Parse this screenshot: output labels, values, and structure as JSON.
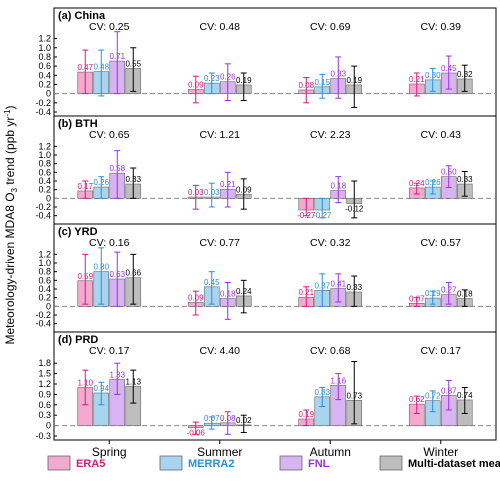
{
  "y_axis_label_prefix": "Meteorology-driven MDA8 O",
  "y_axis_label_sub": "3",
  "y_axis_label_suffix": " trend (ppb yr",
  "y_axis_label_sup": "-1",
  "y_axis_label_close": ")",
  "cv_prefix": "CV:",
  "colors": {
    "ERA5": "#f4a9cf",
    "MERRA2": "#a9d4f0",
    "FNL": "#d9b4f2",
    "Multi-dataset mean": "#bdbdbd",
    "ERA5_text": "#d6197f",
    "MERRA2_text": "#2a8fd8",
    "FNL_text": "#9b30e0",
    "Multi-dataset mean_text": "#000000"
  },
  "chart_data": [
    {
      "type": "bar",
      "title": "(a) China",
      "categories": [
        "Spring",
        "Summer",
        "Autumn",
        "Winter"
      ],
      "cv": [
        "0.25",
        "0.48",
        "0.69",
        "0.39"
      ],
      "ylim": [
        -0.4,
        1.3
      ],
      "yticks": [
        -0.4,
        -0.2,
        0,
        0.2,
        0.4,
        0.6,
        0.8,
        1.0,
        1.2
      ],
      "ytick_labels": [
        "-0.4",
        "-0.2",
        "0",
        "0.2",
        "0.4",
        "0.6",
        "0.8",
        "1.0",
        "1.2"
      ],
      "series": [
        {
          "name": "ERA5",
          "values": [
            0.47,
            0.09,
            0.08,
            0.21
          ],
          "labels": [
            "0.47",
            "0.09",
            "0.08",
            "0.21"
          ],
          "lo": [
            0.0,
            -0.2,
            -0.2,
            -0.05
          ],
          "hi": [
            0.95,
            0.38,
            0.35,
            0.45
          ]
        },
        {
          "name": "MERRA2",
          "values": [
            0.48,
            0.23,
            0.15,
            0.3
          ],
          "labels": [
            "0.48",
            "0.23",
            "0.15",
            "0.30"
          ],
          "lo": [
            -0.05,
            0.0,
            -0.1,
            0.05
          ],
          "hi": [
            0.95,
            0.45,
            0.42,
            0.55
          ]
        },
        {
          "name": "FNL",
          "values": [
            0.71,
            0.26,
            0.33,
            0.45
          ],
          "labels": [
            "0.71",
            "0.26",
            "0.33",
            "0.45"
          ],
          "lo": [
            0.0,
            -0.15,
            -0.1,
            0.1
          ],
          "hi": [
            1.35,
            0.65,
            0.8,
            0.82
          ]
        },
        {
          "name": "Multi-dataset mean",
          "values": [
            0.55,
            0.19,
            0.19,
            0.32
          ],
          "labels": [
            "0.55",
            "0.19",
            "0.19",
            "0.32"
          ],
          "lo": [
            0.05,
            -0.15,
            -0.3,
            0.05
          ],
          "hi": [
            1.0,
            0.45,
            0.6,
            0.62
          ]
        }
      ]
    },
    {
      "type": "bar",
      "title": "(b) BTH",
      "categories": [
        "Spring",
        "Summer",
        "Autumn",
        "Winter"
      ],
      "cv": [
        "0.65",
        "1.21",
        "2.23",
        "0.43"
      ],
      "ylim": [
        -0.5,
        1.3
      ],
      "yticks": [
        -0.4,
        -0.2,
        0,
        0.2,
        0.4,
        0.6,
        0.8,
        1.0,
        1.2
      ],
      "ytick_labels": [
        "-0.4",
        "-0.2",
        "0",
        "0.2",
        "0.4",
        "0.6",
        "0.8",
        "1.0",
        "1.2"
      ],
      "series": [
        {
          "name": "ERA5",
          "values": [
            0.17,
            0.03,
            -0.27,
            0.24
          ],
          "labels": [
            "0.17",
            "0.03",
            "-0.27",
            "0.24"
          ],
          "lo": [
            0.0,
            -0.25,
            -0.4,
            0.1
          ],
          "hi": [
            0.4,
            0.3,
            0.0,
            0.35
          ]
        },
        {
          "name": "MERRA2",
          "values": [
            0.26,
            0.03,
            -0.27,
            0.26
          ],
          "labels": [
            "0.26",
            "0.03",
            "-0.27",
            "0.26"
          ],
          "lo": [
            0.0,
            -0.2,
            -0.45,
            0.1
          ],
          "hi": [
            0.5,
            0.35,
            0.0,
            0.4
          ]
        },
        {
          "name": "FNL",
          "values": [
            0.58,
            0.21,
            0.18,
            0.5
          ],
          "labels": [
            "0.58",
            "0.21",
            "0.18",
            "0.50"
          ],
          "lo": [
            0.0,
            -0.2,
            -0.1,
            0.25
          ],
          "hi": [
            1.1,
            0.6,
            0.5,
            0.75
          ]
        },
        {
          "name": "Multi-dataset mean",
          "values": [
            0.33,
            0.09,
            -0.12,
            0.33
          ],
          "labels": [
            "0.33",
            "0.09",
            "-0.12",
            "0.33"
          ],
          "lo": [
            0.0,
            -0.25,
            -0.45,
            0.05
          ],
          "hi": [
            0.7,
            0.45,
            0.4,
            0.62
          ]
        }
      ]
    },
    {
      "type": "bar",
      "title": "(c) YRD",
      "categories": [
        "Spring",
        "Summer",
        "Autumn",
        "Winter"
      ],
      "cv": [
        "0.16",
        "0.77",
        "0.32",
        "0.57"
      ],
      "ylim": [
        -0.5,
        1.3
      ],
      "yticks": [
        -0.4,
        -0.2,
        0,
        0.2,
        0.4,
        0.6,
        0.8,
        1.0,
        1.2
      ],
      "ytick_labels": [
        "-0.4",
        "-0.2",
        "0",
        "0.2",
        "0.4",
        "0.6",
        "0.8",
        "1.0",
        "1.2"
      ],
      "series": [
        {
          "name": "ERA5",
          "values": [
            0.59,
            0.09,
            0.21,
            0.07
          ],
          "labels": [
            "0.59",
            "0.09",
            "0.21",
            "0.07"
          ],
          "lo": [
            0.05,
            -0.2,
            0.0,
            0.0
          ],
          "hi": [
            1.2,
            0.35,
            0.45,
            0.2
          ]
        },
        {
          "name": "MERRA2",
          "values": [
            0.8,
            0.45,
            0.37,
            0.19
          ],
          "labels": [
            "0.80",
            "0.45",
            "0.37",
            "0.19"
          ],
          "lo": [
            0.05,
            0.05,
            0.0,
            0.05
          ],
          "hi": [
            1.35,
            0.8,
            0.75,
            0.35
          ]
        },
        {
          "name": "FNL",
          "values": [
            0.63,
            0.18,
            0.41,
            0.27
          ],
          "labels": [
            "0.63",
            "0.18",
            "0.41",
            "0.27"
          ],
          "lo": [
            0.0,
            -0.3,
            0.1,
            0.05
          ],
          "hi": [
            1.25,
            0.55,
            0.75,
            0.55
          ]
        },
        {
          "name": "Multi-dataset mean",
          "values": [
            0.66,
            0.24,
            0.33,
            0.18
          ],
          "labels": [
            "0.66",
            "0.24",
            "0.33",
            "0.18"
          ],
          "lo": [
            0.05,
            -0.15,
            0.0,
            0.0
          ],
          "hi": [
            1.2,
            0.6,
            0.7,
            0.38
          ]
        }
      ]
    },
    {
      "type": "bar",
      "title": "(d) PRD",
      "categories": [
        "Spring",
        "Summer",
        "Autumn",
        "Winter"
      ],
      "cv": [
        "0.17",
        "4.40",
        "0.68",
        "0.17"
      ],
      "ylim": [
        -0.3,
        1.95
      ],
      "yticks": [
        -0.3,
        0,
        0.3,
        0.6,
        0.9,
        1.2,
        1.5,
        1.8
      ],
      "ytick_labels": [
        "-0.3",
        "0",
        "0.3",
        "0.6",
        "0.9",
        "1.2",
        "1.5",
        "1.8"
      ],
      "series": [
        {
          "name": "ERA5",
          "values": [
            1.1,
            -0.06,
            0.19,
            0.62
          ],
          "labels": [
            "1.10",
            "-0.06",
            "0.19",
            "0.62"
          ],
          "lo": [
            0.6,
            -0.25,
            0.0,
            0.35
          ],
          "hi": [
            1.6,
            0.1,
            0.45,
            0.85
          ]
        },
        {
          "name": "MERRA2",
          "values": [
            0.94,
            0.07,
            0.83,
            0.72
          ],
          "labels": [
            "0.94",
            "0.07",
            "0.83",
            "0.72"
          ],
          "lo": [
            0.6,
            -0.1,
            0.55,
            0.4
          ],
          "hi": [
            1.25,
            0.25,
            1.1,
            1.0
          ]
        },
        {
          "name": "FNL",
          "values": [
            1.33,
            0.08,
            1.16,
            0.87
          ],
          "labels": [
            "1.33",
            "0.08",
            "1.16",
            "0.87"
          ],
          "lo": [
            0.9,
            -0.25,
            0.75,
            0.45
          ],
          "hi": [
            1.8,
            0.4,
            1.5,
            1.3
          ]
        },
        {
          "name": "Multi-dataset mean",
          "values": [
            1.13,
            0.02,
            0.73,
            0.74
          ],
          "labels": [
            "1.13",
            "0.02",
            "0.73",
            "0.74"
          ],
          "lo": [
            0.65,
            -0.2,
            0.05,
            0.35
          ],
          "hi": [
            1.6,
            0.3,
            1.85,
            1.1
          ]
        }
      ]
    }
  ],
  "legend": [
    {
      "name": "ERA5"
    },
    {
      "name": "MERRA2"
    },
    {
      "name": "FNL"
    },
    {
      "name": "Multi-dataset mean"
    }
  ]
}
